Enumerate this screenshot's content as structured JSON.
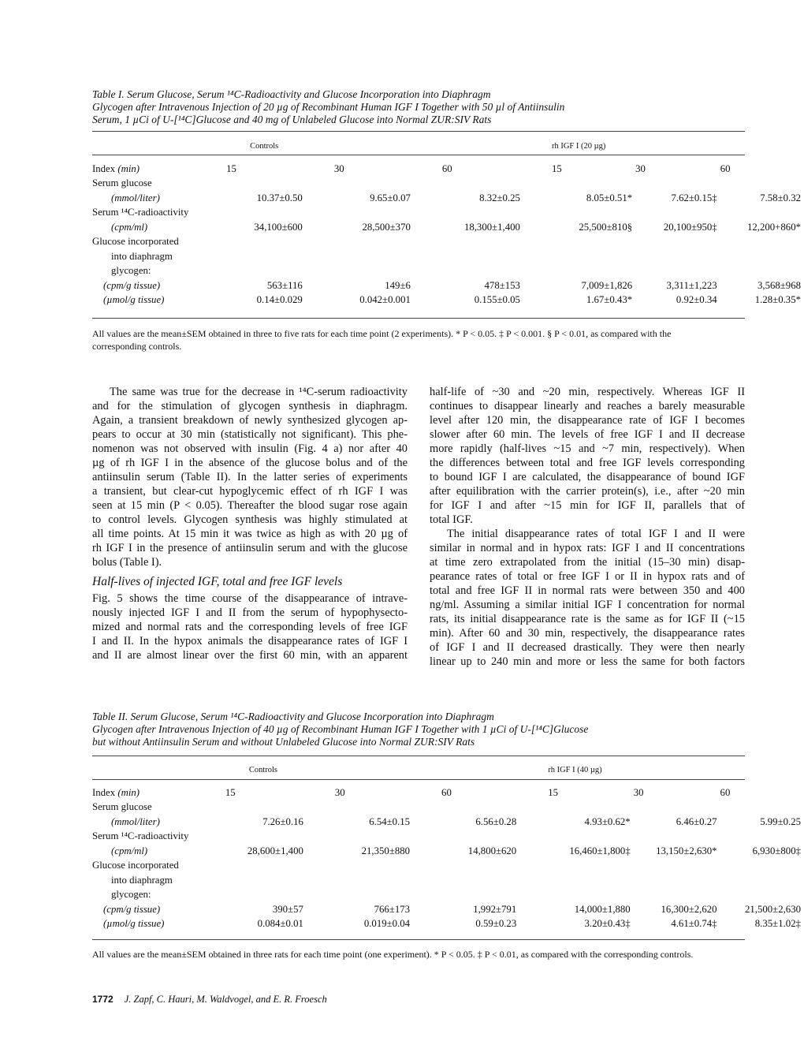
{
  "table1": {
    "title": [
      "Table I. Serum Glucose, Serum ¹⁴C-Radioactivity and Glucose Incorporation into Diaphragm",
      "Glycogen after Intravenous Injection of 20 µg of Recombinant Human IGF I Together with 50 µl of Antiinsulin",
      "Serum, 1 µCi of U-[¹⁴C]Glucose and 40 mg of Unlabeled Glucose into Normal ZUR:SIV Rats"
    ],
    "group_headers": [
      "Controls",
      "rh IGF I (20 µg)"
    ],
    "rows": [
      {
        "label": "Index",
        "unit": "(min)",
        "cells": [
          "15",
          "30",
          "60",
          "15",
          "30",
          "60"
        ],
        "kind": "index"
      },
      {
        "label": "Serum glucose",
        "cells": []
      },
      {
        "unit": "(mmol/liter)",
        "indent": 1,
        "cells": [
          "10.37±0.50",
          "9.65±0.07",
          "8.32±0.25",
          "8.05±0.51*",
          "7.62±0.15‡",
          "7.58±0.32"
        ]
      },
      {
        "label": "Serum ¹⁴C-radioactivity",
        "cells": []
      },
      {
        "unit": "(cpm/ml)",
        "indent": 1,
        "cells": [
          "34,100±600",
          "28,500±370",
          "18,300±1,400",
          "25,500±810§",
          "20,100±950‡",
          "12,200+860*"
        ]
      },
      {
        "label": "Glucose incorporated",
        "cells": []
      },
      {
        "label": "into diaphragm",
        "indent": 1,
        "cells": []
      },
      {
        "label": "glycogen:",
        "indent": 1,
        "cells": []
      },
      {
        "unit": "(cpm/g tissue)",
        "indent": 2,
        "cells": [
          "563±116",
          "149±6",
          "478±153",
          "7,009±1,826",
          "3,311±1,223",
          "3,568±968"
        ]
      },
      {
        "unit": "(µmol/g tissue)",
        "indent": 2,
        "cells": [
          "0.14±0.029",
          "0.042±0.001",
          "0.155±0.05",
          "1.67±0.43*",
          "0.92±0.34",
          "1.28±0.35*"
        ]
      }
    ],
    "footnote": "All values are the mean±SEM obtained in three to five rats for each time point (2 experiments).  * P < 0.05.  ‡ P < 0.001.  § P < 0.01, as compared with the corresponding controls."
  },
  "body": {
    "left": [
      {
        "t": "The same was true for the decrease in ¹⁴C-serum radioactivity",
        "c": "ind"
      },
      {
        "t": "and for the stimulation of glycogen synthesis in diaphragm."
      },
      {
        "t": "Again, a transient breakdown of newly synthesized glycogen ap-"
      },
      {
        "t": "pears to occur at 30 min (statistically not significant). This phe-"
      },
      {
        "t": "nomenon was not observed with insulin (Fig. 4 a) nor after 40"
      },
      {
        "t": "µg of rh IGF I in the absence of the glucose bolus and of the"
      },
      {
        "t": "antiinsulin serum (Table II). In the latter series of experiments"
      },
      {
        "t": "a transient, but clear-cut hypoglycemic effect of rh IGF I was"
      },
      {
        "t": "seen at 15 min (P < 0.05). Thereafter the blood sugar rose again"
      },
      {
        "t": "to control levels. Glycogen synthesis was highly stimulated at"
      },
      {
        "t": "all time points. At 15 min it was twice as high as with 20 µg of"
      },
      {
        "t": "rh IGF I in the presence of antiinsulin serum and with the glucose"
      },
      {
        "t": "bolus (Table I).",
        "c": "last"
      },
      {
        "t": "Half-lives of injected IGF, total and free IGF levels",
        "c": "head"
      },
      {
        "t": "Fig. 5 shows the time course of the disappearance of intrave-"
      },
      {
        "t": "nously injected IGF I and II from the serum of hypophysecto-"
      },
      {
        "t": "mized and normal rats and the corresponding levels of free IGF"
      },
      {
        "t": "I and II. In the hypox animals the disappearance rates of IGF I"
      },
      {
        "t": "and II are almost linear over the first 60 min, with an apparent"
      }
    ],
    "right": [
      {
        "t": "half-life of ~30 and ~20 min, respectively. Whereas IGF II"
      },
      {
        "t": "continues to disappear linearly and reaches a barely measurable"
      },
      {
        "t": "level after 120 min, the disappearance rate of IGF I becomes"
      },
      {
        "t": "slower after 60 min. The levels of free IGF I and II decrease"
      },
      {
        "t": "more rapidly (half-lives ~15 and ~7 min, respectively). When"
      },
      {
        "t": "the differences between total and free IGF levels corresponding"
      },
      {
        "t": "to bound IGF I are calculated, the disappearance of bound IGF"
      },
      {
        "t": "after equilibration with the carrier protein(s), i.e., after ~20 min"
      },
      {
        "t": "for IGF I and after ~15 min for IGF II, parallels that of"
      },
      {
        "t": "total IGF.",
        "c": "last"
      },
      {
        "t": "The initial disappearance rates of total IGF I and II were",
        "c": "ind"
      },
      {
        "t": "similar in normal and in hypox rats: IGF I and II concentrations"
      },
      {
        "t": "at time zero extrapolated from the initial (15–30 min) disap-"
      },
      {
        "t": "pearance rates of total or free IGF I or II in hypox rats and of"
      },
      {
        "t": "total and free IGF II in normal rats were between 350 and 400"
      },
      {
        "t": "ng/ml. Assuming a similar initial IGF I concentration for normal"
      },
      {
        "t": "rats, its initial disappearance rate is the same as for IGF II (~15"
      },
      {
        "t": "min). After 60 and 30 min, respectively, the disappearance rates"
      },
      {
        "t": "of IGF I and II decreased drastically. They were then nearly"
      },
      {
        "t": "linear up to 240 min and more or less the same for both factors"
      }
    ]
  },
  "table2": {
    "title": [
      "Table II. Serum Glucose, Serum ¹⁴C-Radioactivity and Glucose Incorporation into Diaphragm",
      "Glycogen after Intravenous Injection of 40 µg of Recombinant Human IGF I Together with 1 µCi of U-[¹⁴C]Glucose",
      "but without Antiinsulin Serum and without Unlabeled Glucose into Normal ZUR:SIV Rats"
    ],
    "group_headers": [
      "Controls",
      "rh IGF I (40 µg)"
    ],
    "rows": [
      {
        "label": "Index",
        "unit": "(min)",
        "cells": [
          "15",
          "30",
          "60",
          "15",
          "30",
          "60"
        ],
        "kind": "index"
      },
      {
        "label": "Serum glucose",
        "cells": []
      },
      {
        "unit": "(mmol/liter)",
        "indent": 1,
        "cells": [
          "7.26±0.16",
          "6.54±0.15",
          "6.56±0.28",
          "4.93±0.62*",
          "6.46±0.27",
          "5.99±0.25"
        ]
      },
      {
        "label": "Serum ¹⁴C-radioactivity",
        "cells": []
      },
      {
        "unit": "(cpm/ml)",
        "indent": 1,
        "cells": [
          "28,600±1,400",
          "21,350±880",
          "14,800±620",
          "16,460±1,800‡",
          "13,150±2,630*",
          "6,930±800‡"
        ]
      },
      {
        "label": "Glucose incorporated",
        "cells": []
      },
      {
        "label": "into diaphragm",
        "indent": 1,
        "cells": []
      },
      {
        "label": "glycogen:",
        "indent": 1,
        "cells": []
      },
      {
        "unit": "(cpm/g tissue)",
        "indent": 2,
        "cells": [
          "390±57",
          "766±173",
          "1,992±791",
          "14,000±1,880",
          "16,300±2,620",
          "21,500±2,630"
        ]
      },
      {
        "unit": "(µmol/g tissue)",
        "indent": 2,
        "cells": [
          "0.084±0.01",
          "0.019±0.04",
          "0.59±0.23",
          "3.20±0.43‡",
          "4.61±0.74‡",
          "8.35±1.02‡"
        ]
      }
    ],
    "footnote": "All values are the mean±SEM obtained in three rats for each time point (one experiment).  * P < 0.05.  ‡ P < 0.01, as compared with the corresponding controls."
  },
  "footer": {
    "page_number": "1772",
    "authors": "J. Zapf, C. Hauri, M. Waldvogel, and E. R. Froesch"
  }
}
